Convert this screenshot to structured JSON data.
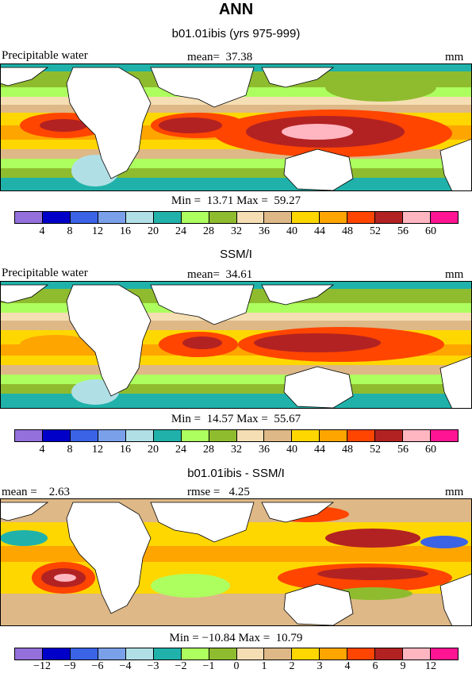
{
  "title": "ANN",
  "panels": [
    {
      "subtitle": "b01.01ibis (yrs 975-999)",
      "left_label": "Precipitable water",
      "center_label": "mean=  37.38",
      "right_label": "mm",
      "minmax": "Min =  13.71 Max =  59.27",
      "colorbar_ticks": [
        "4",
        "8",
        "12",
        "16",
        "20",
        "24",
        "28",
        "32",
        "36",
        "40",
        "44",
        "48",
        "52",
        "56",
        "60"
      ]
    },
    {
      "subtitle": "SSM/I",
      "left_label": "Precipitable water",
      "center_label": "mean=  34.61",
      "right_label": "mm",
      "minmax": "Min =  14.57 Max =  55.67",
      "colorbar_ticks": [
        "4",
        "8",
        "12",
        "16",
        "20",
        "24",
        "28",
        "32",
        "36",
        "40",
        "44",
        "48",
        "52",
        "56",
        "60"
      ]
    },
    {
      "subtitle": "b01.01ibis - SSM/I",
      "left_label": "mean =    2.63",
      "center_label": "rmse =   4.25",
      "right_label": "mm",
      "minmax": "Min = −10.84 Max =  10.79",
      "colorbar_ticks": [
        "−12",
        "−9",
        "−6",
        "−4",
        "−3",
        "−2",
        "−1",
        "0",
        "1",
        "2",
        "3",
        "4",
        "6",
        "9",
        "12"
      ]
    }
  ],
  "colorbar_colors": [
    "#9370db",
    "#0000c8",
    "#3a63e6",
    "#7aa0ea",
    "#b0e0e6",
    "#20b2aa",
    "#adff5f",
    "#8fbc2f",
    "#f5deb3",
    "#deb887",
    "#ffd700",
    "#ffa500",
    "#ff4500",
    "#b22222",
    "#ffb6c1",
    "#ff1493"
  ]
}
